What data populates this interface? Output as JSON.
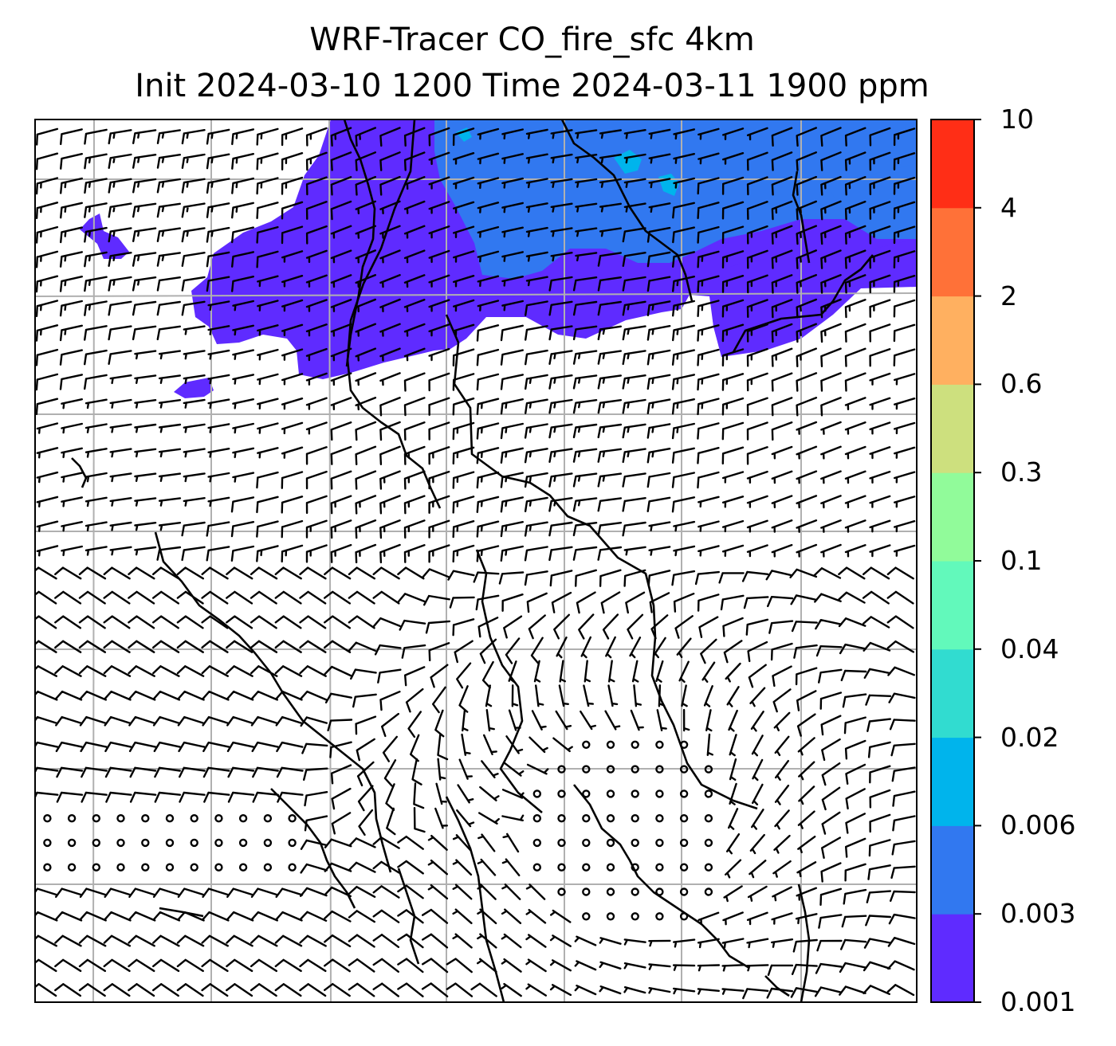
{
  "title": {
    "line1": "WRF-Tracer CO_fire_sfc 4km",
    "line2": "Init 2024-03-10 1200 Time 2024-03-11 1900 ppm"
  },
  "colorbar": {
    "levels": [
      "0.001",
      "0.003",
      "0.006",
      "0.02",
      "0.04",
      "0.1",
      "0.3",
      "0.6",
      "2",
      "4",
      "10"
    ],
    "colors": [
      "#5f2bff",
      "#3178f0",
      "#00b4ec",
      "#31dcd0",
      "#62f9bb",
      "#91fb9a",
      "#cde07e",
      "#ffb060",
      "#ff7138",
      "#ff2e16"
    ]
  },
  "map": {
    "field": "CO_fire_sfc",
    "units": "ppm",
    "land_color": "#ffffff",
    "plume_colors": {
      "low": "#5f2bff",
      "mid": "#3178f0",
      "high": "#00b4ec"
    },
    "gridline_color": "#b0b0b0",
    "overlay": "wind barbs"
  }
}
